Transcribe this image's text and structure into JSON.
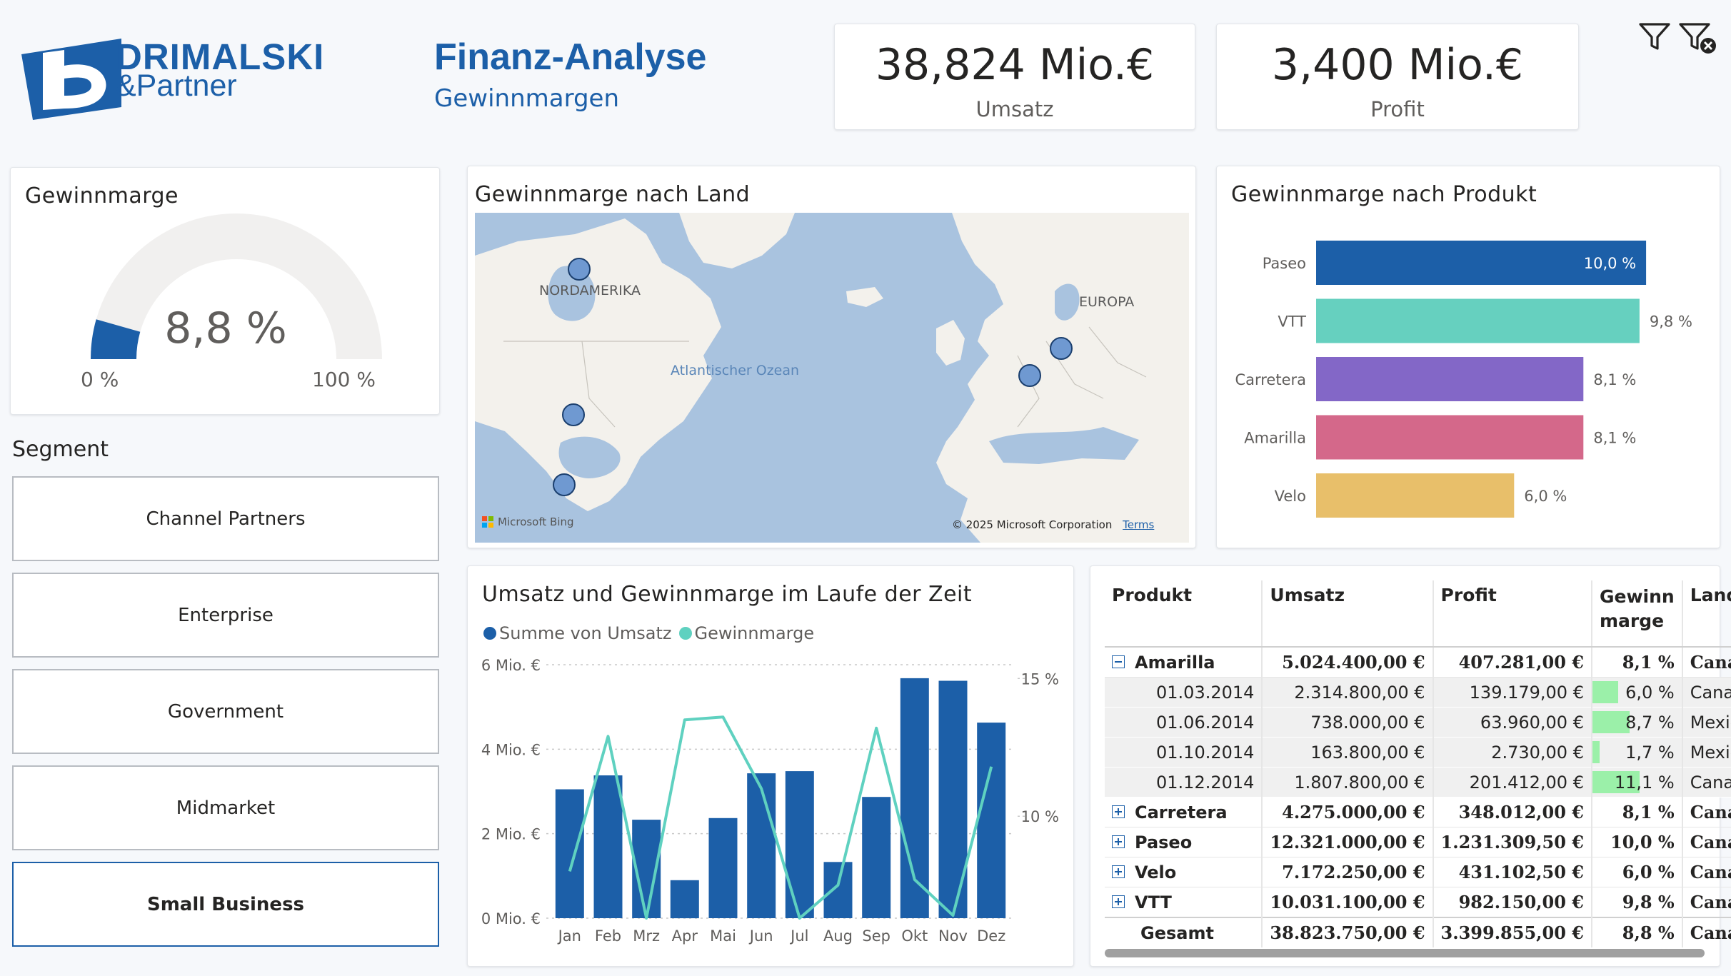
{
  "header": {
    "logo_brand": "DRIMALSKI",
    "logo_sub": "&Partner",
    "title": "Finanz-Analyse",
    "subtitle": "Gewinnmargen"
  },
  "kpis": [
    {
      "value": "38,824 Mio.€",
      "label": "Umsatz"
    },
    {
      "value": "3,400 Mio.€",
      "label": "Profit"
    }
  ],
  "toolbar": {
    "filter_icon": "filter-icon",
    "clear_filter_icon": "clear-filter-icon"
  },
  "gauge": {
    "title": "Gewinnmarge",
    "value_text": "8,8 %",
    "value_fraction": 0.088,
    "min_label": "0 %",
    "max_label": "100 %"
  },
  "segment": {
    "title": "Segment",
    "items": [
      "Channel Partners",
      "Enterprise",
      "Government",
      "Midmarket",
      "Small Business"
    ],
    "selected": "Small Business"
  },
  "map": {
    "title": "Gewinnmarge nach Land",
    "label_na": "NORDAMERIKA",
    "label_eu": "EUROPA",
    "label_ocean": "Atlantischer Ozean",
    "bing": "Microsoft Bing",
    "copyright": "© 2025 Microsoft Corporation",
    "terms": "Terms"
  },
  "product_chart": {
    "title": "Gewinnmarge nach Produkt",
    "chart_data": {
      "type": "bar",
      "orientation": "horizontal",
      "categories": [
        "Paseo",
        "VTT",
        "Carretera",
        "Amarilla",
        "Velo"
      ],
      "values": [
        10.0,
        9.8,
        8.1,
        8.1,
        6.0
      ],
      "value_labels": [
        "10,0 %",
        "9,8 %",
        "8,1 %",
        "8,1 %",
        "6,0 %"
      ],
      "colors": [
        "#1c5fa8",
        "#66d0bf",
        "#8367c7",
        "#d4688a",
        "#e8bf6a"
      ]
    }
  },
  "time_chart": {
    "title": "Umsatz und Gewinnmarge im Laufe der Zeit",
    "chart_data": {
      "type": "bar",
      "categories": [
        "Jan",
        "Feb",
        "Mrz",
        "Apr",
        "Mai",
        "Jun",
        "Jul",
        "Aug",
        "Sep",
        "Okt",
        "Nov",
        "Dez"
      ],
      "series": [
        {
          "name": "Summe von Umsatz",
          "type": "bar",
          "axis": "left",
          "color": "#1c5fa8",
          "values": [
            3.05,
            3.38,
            2.33,
            0.9,
            2.37,
            3.43,
            3.48,
            1.33,
            2.87,
            5.68,
            5.62,
            4.63
          ]
        },
        {
          "name": "Gewinnmarge",
          "type": "line",
          "axis": "right",
          "color": "#5fd1c0",
          "values": [
            8.0,
            12.9,
            6.2,
            13.5,
            13.6,
            11.0,
            6.3,
            7.5,
            13.2,
            7.7,
            6.4,
            11.8
          ]
        }
      ],
      "y_left": {
        "ticks": [
          "6 Mio. €",
          "4 Mio. €",
          "2 Mio. €",
          "0 Mio. €"
        ],
        "range": [
          0,
          6
        ]
      },
      "y_right": {
        "ticks": [
          "15 %",
          "10 %"
        ],
        "range": [
          6.3,
          15.5
        ]
      },
      "grid": true,
      "legend": "top-left"
    }
  },
  "matrix": {
    "headers": [
      "Produkt",
      "Umsatz",
      "Profit",
      "Gewinn marge",
      "Land"
    ],
    "rows": [
      {
        "kind": "group",
        "expanded": true,
        "produkt": "Amarilla",
        "umsatz": "5.024.400,00 €",
        "profit": "407.281,00 €",
        "marge": "8,1 %",
        "land": "Canada"
      },
      {
        "kind": "child",
        "produkt": "01.03.2014",
        "umsatz": "2.314.800,00 €",
        "profit": "139.179,00 €",
        "marge": "6,0 %",
        "marge_value": 6.0,
        "land": "Canada"
      },
      {
        "kind": "child",
        "produkt": "01.06.2014",
        "umsatz": "738.000,00 €",
        "profit": "63.960,00 €",
        "marge": "8,7 %",
        "marge_value": 8.7,
        "land": "Mexico"
      },
      {
        "kind": "child",
        "produkt": "01.10.2014",
        "umsatz": "163.800,00 €",
        "profit": "2.730,00 €",
        "marge": "1,7 %",
        "marge_value": 1.7,
        "land": "Mexico"
      },
      {
        "kind": "child",
        "produkt": "01.12.2014",
        "umsatz": "1.807.800,00 €",
        "profit": "201.412,00 €",
        "marge": "11,1 %",
        "marge_value": 11.1,
        "land": "Canada"
      },
      {
        "kind": "group",
        "expanded": false,
        "produkt": "Carretera",
        "umsatz": "4.275.000,00 €",
        "profit": "348.012,00 €",
        "marge": "8,1 %",
        "land": "Canada"
      },
      {
        "kind": "group",
        "expanded": false,
        "produkt": "Paseo",
        "umsatz": "12.321.000,00 €",
        "profit": "1.231.309,50 €",
        "marge": "10,0 %",
        "land": "Canada"
      },
      {
        "kind": "group",
        "expanded": false,
        "produkt": "Velo",
        "umsatz": "7.172.250,00 €",
        "profit": "431.102,50 €",
        "marge": "6,0 %",
        "land": "Canada"
      },
      {
        "kind": "group",
        "expanded": false,
        "produkt": "VTT",
        "umsatz": "10.031.100,00 €",
        "profit": "982.150,00 €",
        "marge": "9,8 %",
        "land": "Canada"
      },
      {
        "kind": "total",
        "produkt": "Gesamt",
        "umsatz": "38.823.750,00 €",
        "profit": "3.399.855,00 €",
        "marge": "8,8 %",
        "land": "Canada"
      }
    ]
  }
}
